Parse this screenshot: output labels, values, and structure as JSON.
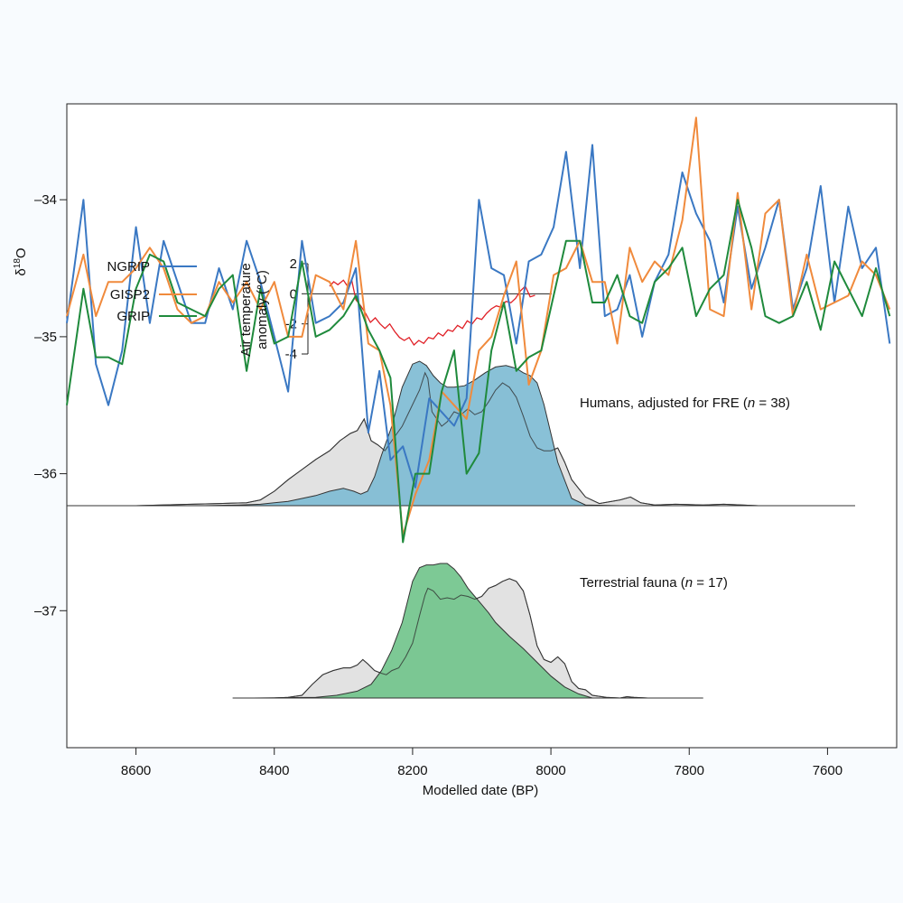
{
  "chart_data": {
    "type": "line",
    "title": "",
    "xlabel": "Modelled date (BP)",
    "xlim": [
      8700,
      7500
    ],
    "x_ticks": [
      8600,
      8400,
      8200,
      8000,
      7800,
      7600
    ],
    "ylabel_prefix": "δ",
    "ylabel_sup": "18",
    "ylabel_suffix": "O",
    "ylim": [
      -38,
      -33.3
    ],
    "y_ticks": [
      -34,
      -35,
      -36,
      -37
    ],
    "y_tick_labels": [
      "–34",
      "–35",
      "–36",
      "–37"
    ],
    "legend": [
      "NGRIP",
      "GISP2",
      "GRIP"
    ],
    "series": [
      {
        "name": "NGRIP",
        "color": "#3a78c3",
        "x": [
          8700,
          8676,
          8658,
          8640,
          8620,
          8600,
          8580,
          8560,
          8540,
          8520,
          8500,
          8480,
          8460,
          8440,
          8420,
          8400,
          8380,
          8360,
          8340,
          8320,
          8300,
          8282,
          8264,
          8248,
          8232,
          8214,
          8196,
          8176,
          8158,
          8140,
          8122,
          8104,
          8086,
          8068,
          8050,
          8032,
          8014,
          7996,
          7978,
          7958,
          7940,
          7922,
          7904,
          7886,
          7868,
          7850,
          7830,
          7810,
          7790,
          7770,
          7750,
          7730,
          7710,
          7690,
          7670,
          7650,
          7630,
          7610,
          7590,
          7570,
          7550,
          7530,
          7510
        ],
        "values": [
          -34.9,
          -34.0,
          -35.2,
          -35.5,
          -35.1,
          -34.2,
          -34.9,
          -34.3,
          -34.6,
          -34.9,
          -34.9,
          -34.5,
          -34.8,
          -34.3,
          -34.6,
          -35.0,
          -35.4,
          -34.3,
          -34.9,
          -34.85,
          -34.75,
          -34.5,
          -35.7,
          -35.25,
          -35.9,
          -35.8,
          -36.1,
          -35.45,
          -35.55,
          -35.65,
          -35.45,
          -34.0,
          -34.5,
          -34.55,
          -35.05,
          -34.45,
          -34.4,
          -34.2,
          -33.65,
          -34.5,
          -33.6,
          -34.85,
          -34.8,
          -34.55,
          -35.0,
          -34.6,
          -34.4,
          -33.8,
          -34.1,
          -34.3,
          -34.75,
          -34.05,
          -34.65,
          -34.35,
          -34.0,
          -34.8,
          -34.5,
          -33.9,
          -34.75,
          -34.05,
          -34.5,
          -34.35,
          -35.05
        ]
      },
      {
        "name": "GISP2",
        "color": "#f08a3c",
        "x": [
          8700,
          8676,
          8658,
          8640,
          8620,
          8600,
          8580,
          8560,
          8540,
          8520,
          8500,
          8480,
          8460,
          8440,
          8420,
          8400,
          8380,
          8360,
          8340,
          8320,
          8300,
          8282,
          8264,
          8248,
          8232,
          8214,
          8196,
          8176,
          8158,
          8140,
          8122,
          8104,
          8086,
          8068,
          8050,
          8032,
          8014,
          7996,
          7978,
          7958,
          7940,
          7922,
          7904,
          7886,
          7868,
          7850,
          7830,
          7810,
          7790,
          7770,
          7750,
          7730,
          7710,
          7690,
          7670,
          7650,
          7630,
          7610,
          7590,
          7570,
          7550,
          7530,
          7510
        ],
        "values": [
          -34.85,
          -34.4,
          -34.85,
          -34.6,
          -34.6,
          -34.5,
          -34.35,
          -34.5,
          -34.8,
          -34.9,
          -34.85,
          -34.6,
          -34.75,
          -34.6,
          -34.8,
          -34.6,
          -35.0,
          -35.0,
          -34.55,
          -34.6,
          -34.8,
          -34.3,
          -35.05,
          -35.1,
          -35.5,
          -36.45,
          -36.15,
          -35.9,
          -35.4,
          -35.5,
          -35.6,
          -35.1,
          -35.0,
          -34.7,
          -34.45,
          -35.35,
          -35.1,
          -34.55,
          -34.5,
          -34.3,
          -34.6,
          -34.6,
          -35.05,
          -34.35,
          -34.6,
          -34.45,
          -34.55,
          -34.15,
          -33.4,
          -34.8,
          -34.85,
          -33.95,
          -34.8,
          -34.1,
          -34.0,
          -34.85,
          -34.4,
          -34.8,
          -34.75,
          -34.7,
          -34.45,
          -34.55,
          -34.8
        ]
      },
      {
        "name": "GRIP",
        "color": "#1f8a3c",
        "x": [
          8700,
          8676,
          8658,
          8640,
          8620,
          8600,
          8580,
          8560,
          8540,
          8520,
          8500,
          8480,
          8460,
          8440,
          8420,
          8400,
          8380,
          8360,
          8340,
          8320,
          8300,
          8282,
          8264,
          8248,
          8232,
          8214,
          8196,
          8176,
          8158,
          8140,
          8122,
          8104,
          8086,
          8068,
          8050,
          8032,
          8014,
          7996,
          7978,
          7958,
          7940,
          7922,
          7904,
          7886,
          7868,
          7850,
          7830,
          7810,
          7790,
          7770,
          7750,
          7730,
          7710,
          7690,
          7670,
          7650,
          7630,
          7610,
          7590,
          7570,
          7550,
          7530,
          7510
        ],
        "values": [
          -35.5,
          -34.65,
          -35.15,
          -35.15,
          -35.2,
          -34.65,
          -34.4,
          -34.45,
          -34.75,
          -34.8,
          -34.85,
          -34.65,
          -34.55,
          -35.25,
          -34.65,
          -35.05,
          -35.0,
          -34.45,
          -35.0,
          -34.95,
          -34.85,
          -34.7,
          -34.95,
          -35.1,
          -35.3,
          -36.5,
          -36.0,
          -36.0,
          -35.4,
          -35.1,
          -36.0,
          -35.85,
          -35.1,
          -34.75,
          -35.25,
          -35.15,
          -35.1,
          -34.7,
          -34.3,
          -34.3,
          -34.75,
          -34.75,
          -34.55,
          -34.85,
          -34.9,
          -34.6,
          -34.5,
          -34.35,
          -34.85,
          -34.65,
          -34.55,
          -34.0,
          -34.35,
          -34.85,
          -34.9,
          -34.85,
          -34.6,
          -34.95,
          -34.45,
          -34.65,
          -34.85,
          -34.5,
          -34.85
        ]
      }
    ],
    "inset": {
      "ylabel_line1": "Air temperature",
      "ylabel_line2": "anomaly (°C)",
      "y_ticks": [
        2,
        0,
        -2,
        -4
      ],
      "ylim": [
        -4,
        2
      ],
      "series": {
        "name": "Air temperature anomaly",
        "color": "#e01f26",
        "x": [
          8320,
          8314,
          8308,
          8300,
          8294,
          8288,
          8282,
          8275,
          8268,
          8261,
          8254,
          8247,
          8240,
          8233,
          8226,
          8219,
          8212,
          8205,
          8198,
          8191,
          8184,
          8177,
          8170,
          8163,
          8156,
          8149,
          8142,
          8135,
          8128,
          8121,
          8114,
          8107,
          8100,
          8093,
          8086,
          8079,
          8072,
          8065,
          8058,
          8051,
          8044,
          8037,
          8030,
          8023
        ],
        "values": [
          0.5,
          0.8,
          0.6,
          0.9,
          0.5,
          0.9,
          -0.4,
          -0.8,
          -1.3,
          -1.9,
          -1.6,
          -2.0,
          -2.3,
          -2.0,
          -2.5,
          -2.9,
          -3.1,
          -2.9,
          -3.4,
          -3.1,
          -3.3,
          -2.9,
          -3.0,
          -2.6,
          -2.8,
          -2.4,
          -2.5,
          -2.1,
          -2.3,
          -1.8,
          -2.0,
          -1.6,
          -1.7,
          -1.3,
          -1.0,
          -0.8,
          -0.9,
          -0.5,
          -0.6,
          -0.3,
          0.2,
          0.5,
          -0.2,
          -0.1
        ]
      }
    },
    "densities": [
      {
        "label_prefix": "Humans, adjusted for FRE (",
        "label_n": "n",
        "label_suffix": " = 38)",
        "fill": "#7fbcd4",
        "x": [
          8640,
          8560,
          8500,
          8450,
          8420,
          8400,
          8380,
          8360,
          8340,
          8320,
          8300,
          8285,
          8275,
          8265,
          8255,
          8245,
          8230,
          8215,
          8200,
          8190,
          8180,
          8170,
          8160,
          8150,
          8140,
          8125,
          8110,
          8095,
          8080,
          8065,
          8050,
          8040,
          8030,
          8020,
          8010,
          7990,
          7970,
          7950,
          7900,
          7880
        ],
        "values": [
          0,
          0,
          0,
          0.005,
          0.01,
          0.02,
          0.03,
          0.05,
          0.07,
          0.1,
          0.12,
          0.1,
          0.08,
          0.1,
          0.2,
          0.35,
          0.55,
          0.82,
          0.98,
          1.0,
          0.97,
          0.9,
          0.85,
          0.82,
          0.82,
          0.83,
          0.87,
          0.92,
          0.96,
          0.97,
          0.95,
          0.92,
          0.9,
          0.85,
          0.7,
          0.3,
          0.05,
          0.005,
          0,
          0
        ],
        "ref_x": [
          8700,
          8600,
          8520,
          8480,
          8440,
          8420,
          8400,
          8380,
          8360,
          8340,
          8320,
          8305,
          8290,
          8280,
          8270,
          8260,
          8250,
          8240,
          8230,
          8215,
          8200,
          8190,
          8182,
          8178,
          8172,
          8165,
          8158,
          8150,
          8140,
          8130,
          8120,
          8110,
          8100,
          8090,
          8080,
          8070,
          8060,
          8050,
          8040,
          8030,
          8020,
          8010,
          8000,
          7990,
          7980,
          7970,
          7960,
          7950,
          7930,
          7900,
          7885,
          7870,
          7850,
          7820,
          7780,
          7750,
          7700,
          7650,
          7600,
          7560
        ],
        "ref_values": [
          0,
          0,
          0.01,
          0.015,
          0.02,
          0.04,
          0.1,
          0.18,
          0.25,
          0.32,
          0.38,
          0.45,
          0.5,
          0.52,
          0.6,
          0.45,
          0.42,
          0.38,
          0.45,
          0.55,
          0.7,
          0.8,
          0.92,
          0.88,
          0.65,
          0.6,
          0.55,
          0.58,
          0.65,
          0.63,
          0.67,
          0.63,
          0.65,
          0.72,
          0.8,
          0.85,
          0.82,
          0.75,
          0.62,
          0.48,
          0.4,
          0.38,
          0.38,
          0.4,
          0.3,
          0.18,
          0.12,
          0.06,
          0.015,
          0.04,
          0.06,
          0.02,
          0.005,
          0.01,
          0.005,
          0.01,
          0,
          0,
          0,
          0
        ]
      },
      {
        "label_prefix": "Terrestrial fauna (",
        "label_n": "n",
        "label_suffix": " = 17)",
        "fill": "#72c48c",
        "x": [
          8430,
          8340,
          8310,
          8280,
          8260,
          8245,
          8230,
          8215,
          8200,
          8190,
          8180,
          8170,
          8160,
          8150,
          8140,
          8130,
          8120,
          8110,
          8100,
          8090,
          8080,
          8060,
          8040,
          8020,
          8000,
          7980,
          7960,
          7940
        ],
        "values": [
          0,
          0.005,
          0.02,
          0.05,
          0.1,
          0.2,
          0.35,
          0.55,
          0.85,
          0.95,
          0.97,
          0.97,
          0.98,
          0.98,
          0.94,
          0.88,
          0.8,
          0.74,
          0.68,
          0.62,
          0.55,
          0.45,
          0.36,
          0.26,
          0.16,
          0.08,
          0.03,
          0
        ],
        "ref_x": [
          8460,
          8400,
          8380,
          8360,
          8345,
          8330,
          8315,
          8300,
          8290,
          8280,
          8272,
          8265,
          8255,
          8245,
          8238,
          8230,
          8220,
          8210,
          8200,
          8190,
          8182,
          8178,
          8170,
          8160,
          8150,
          8140,
          8130,
          8120,
          8110,
          8100,
          8090,
          8080,
          8070,
          8060,
          8050,
          8040,
          8030,
          8020,
          8010,
          8000,
          7990,
          7980,
          7970,
          7960,
          7950,
          7940,
          7920,
          7900,
          7890,
          7880,
          7860,
          7840,
          7800,
          7780
        ],
        "ref_values": [
          0,
          0,
          0.005,
          0.02,
          0.1,
          0.17,
          0.2,
          0.22,
          0.22,
          0.24,
          0.28,
          0.25,
          0.2,
          0.18,
          0.17,
          0.2,
          0.22,
          0.3,
          0.4,
          0.6,
          0.75,
          0.8,
          0.78,
          0.72,
          0.73,
          0.72,
          0.75,
          0.74,
          0.72,
          0.74,
          0.8,
          0.82,
          0.85,
          0.87,
          0.85,
          0.78,
          0.6,
          0.38,
          0.28,
          0.26,
          0.3,
          0.25,
          0.12,
          0.07,
          0.06,
          0.02,
          0.005,
          0,
          0.01,
          0.005,
          0,
          0,
          0,
          0
        ]
      }
    ]
  }
}
